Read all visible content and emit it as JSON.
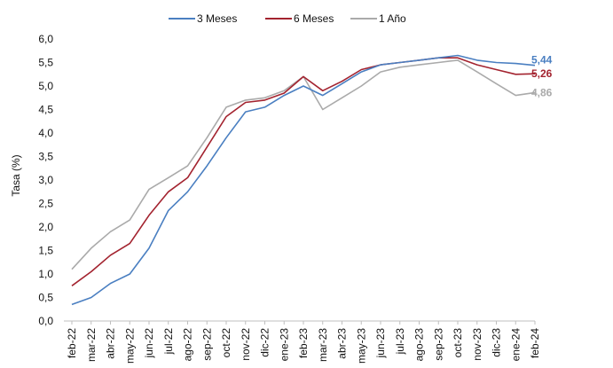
{
  "chart_data": {
    "type": "line",
    "ylabel": "Tasa (%)",
    "ylim": [
      0,
      6
    ],
    "yticks": [
      "0,0",
      "0,5",
      "1,0",
      "1,5",
      "2,0",
      "2,5",
      "3,0",
      "3,5",
      "4,0",
      "4,5",
      "5,0",
      "5,5",
      "6,0"
    ],
    "categories": [
      "feb-22",
      "mar-22",
      "abr-22",
      "may-22",
      "jun-22",
      "jul-22",
      "ago-22",
      "sep-22",
      "oct-22",
      "nov-22",
      "dic-22",
      "ene-23",
      "feb-23",
      "mar-23",
      "abr-23",
      "may-23",
      "jun-23",
      "jul-23",
      "ago-23",
      "sep-23",
      "oct-23",
      "nov-23",
      "dic-23",
      "ene-24",
      "feb-24"
    ],
    "grid": false,
    "legend_position": "top",
    "series": [
      {
        "name": "3 Meses",
        "color": "#4a7fc1",
        "end_label": "5,44",
        "values": [
          0.35,
          0.5,
          0.8,
          1.0,
          1.55,
          2.35,
          2.75,
          3.3,
          3.9,
          4.45,
          4.55,
          4.8,
          5.0,
          4.8,
          5.05,
          5.3,
          5.45,
          5.5,
          5.55,
          5.6,
          5.65,
          5.55,
          5.5,
          5.48,
          5.44
        ]
      },
      {
        "name": "6 Meses",
        "color": "#a3232f",
        "end_label": "5,26",
        "values": [
          0.75,
          1.05,
          1.4,
          1.65,
          2.25,
          2.75,
          3.05,
          3.7,
          4.35,
          4.65,
          4.7,
          4.85,
          5.2,
          4.9,
          5.1,
          5.35,
          5.45,
          5.5,
          5.55,
          5.6,
          5.6,
          5.45,
          5.35,
          5.25,
          5.26
        ]
      },
      {
        "name": "1 Año",
        "color": "#aaaaaa",
        "end_label": "4,86",
        "values": [
          1.1,
          1.55,
          1.9,
          2.15,
          2.8,
          3.05,
          3.3,
          3.9,
          4.55,
          4.7,
          4.75,
          4.9,
          5.2,
          4.5,
          4.75,
          5.0,
          5.3,
          5.4,
          5.45,
          5.5,
          5.55,
          5.3,
          5.05,
          4.8,
          4.86
        ]
      }
    ]
  }
}
